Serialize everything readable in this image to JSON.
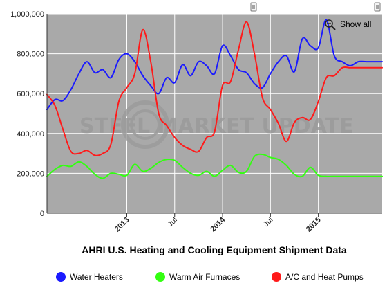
{
  "chart_data": {
    "type": "line",
    "title": "AHRI U.S. Heating and Cooling Equipment Shipment Data",
    "watermark": "STEEL MARKET UPDATE",
    "show_all_label": "Show all",
    "ylim": [
      0,
      1000000
    ],
    "y_ticks": [
      "0",
      "200,000",
      "400,000",
      "600,000",
      "800,000",
      "1,000,000"
    ],
    "x_range": [
      "2012-03",
      "2015-09"
    ],
    "x_ticks": [
      {
        "label": "2013",
        "date": "2013-01",
        "bold": true
      },
      {
        "label": "Jul",
        "date": "2013-07",
        "bold": false
      },
      {
        "label": "2014",
        "date": "2014-01",
        "bold": true
      },
      {
        "label": "Jul",
        "date": "2014-07",
        "bold": false
      },
      {
        "label": "2015",
        "date": "2015-01",
        "bold": true
      }
    ],
    "grid": true,
    "legend_position": "bottom",
    "colors": {
      "plot_bg": "#a9a9a9",
      "grid": "#ffffff",
      "axis": "#333333"
    },
    "series": [
      {
        "name": "Water Heaters",
        "color": "#1a1aff",
        "x": [
          "2012-03",
          "2012-04",
          "2012-05",
          "2012-06",
          "2012-07",
          "2012-08",
          "2012-09",
          "2012-10",
          "2012-11",
          "2012-12",
          "2013-01",
          "2013-02",
          "2013-03",
          "2013-04",
          "2013-05",
          "2013-06",
          "2013-07",
          "2013-08",
          "2013-09",
          "2013-10",
          "2013-11",
          "2013-12",
          "2014-01",
          "2014-02",
          "2014-03",
          "2014-04",
          "2014-05",
          "2014-06",
          "2014-07",
          "2014-08",
          "2014-09",
          "2014-10",
          "2014-11",
          "2014-12",
          "2015-01",
          "2015-02",
          "2015-03",
          "2015-04",
          "2015-05",
          "2015-06",
          "2015-07",
          "2015-08",
          "2015-09"
        ],
        "values": [
          520000,
          570000,
          565000,
          620000,
          700000,
          760000,
          705000,
          720000,
          680000,
          770000,
          800000,
          760000,
          690000,
          640000,
          600000,
          680000,
          655000,
          745000,
          690000,
          760000,
          740000,
          700000,
          840000,
          790000,
          720000,
          705000,
          650000,
          630000,
          700000,
          760000,
          790000,
          710000,
          875000,
          840000,
          830000,
          970000,
          790000,
          760000,
          740000,
          760000,
          760000,
          760000,
          760000
        ]
      },
      {
        "name": "Warm Air Furnaces",
        "color": "#33ff11",
        "x": [
          "2012-03",
          "2012-04",
          "2012-05",
          "2012-06",
          "2012-07",
          "2012-08",
          "2012-09",
          "2012-10",
          "2012-11",
          "2012-12",
          "2013-01",
          "2013-02",
          "2013-03",
          "2013-04",
          "2013-05",
          "2013-06",
          "2013-07",
          "2013-08",
          "2013-09",
          "2013-10",
          "2013-11",
          "2013-12",
          "2014-01",
          "2014-02",
          "2014-03",
          "2014-04",
          "2014-05",
          "2014-06",
          "2014-07",
          "2014-08",
          "2014-09",
          "2014-10",
          "2014-11",
          "2014-12",
          "2015-01",
          "2015-02",
          "2015-03",
          "2015-04",
          "2015-05",
          "2015-06",
          "2015-07",
          "2015-08",
          "2015-09"
        ],
        "values": [
          185000,
          220000,
          240000,
          235000,
          258000,
          235000,
          195000,
          175000,
          200000,
          195000,
          190000,
          245000,
          210000,
          225000,
          255000,
          270000,
          265000,
          230000,
          200000,
          190000,
          210000,
          185000,
          215000,
          240000,
          205000,
          210000,
          285000,
          295000,
          280000,
          270000,
          240000,
          195000,
          185000,
          230000,
          190000,
          185000,
          185000,
          185000,
          185000,
          185000,
          185000,
          185000,
          185000
        ]
      },
      {
        "name": "A/C and Heat Pumps",
        "color": "#ff1a1a",
        "x": [
          "2012-03",
          "2012-04",
          "2012-05",
          "2012-06",
          "2012-07",
          "2012-08",
          "2012-09",
          "2012-10",
          "2012-11",
          "2012-12",
          "2013-01",
          "2013-02",
          "2013-03",
          "2013-04",
          "2013-05",
          "2013-06",
          "2013-07",
          "2013-08",
          "2013-09",
          "2013-10",
          "2013-11",
          "2013-12",
          "2014-01",
          "2014-02",
          "2014-03",
          "2014-04",
          "2014-05",
          "2014-06",
          "2014-07",
          "2014-08",
          "2014-09",
          "2014-10",
          "2014-11",
          "2014-12",
          "2015-01",
          "2015-02",
          "2015-03",
          "2015-04",
          "2015-05",
          "2015-06",
          "2015-07",
          "2015-08",
          "2015-09"
        ],
        "values": [
          595000,
          540000,
          420000,
          310000,
          300000,
          315000,
          290000,
          300000,
          345000,
          560000,
          630000,
          700000,
          920000,
          760000,
          500000,
          440000,
          380000,
          340000,
          320000,
          310000,
          380000,
          410000,
          640000,
          660000,
          820000,
          960000,
          800000,
          580000,
          520000,
          450000,
          360000,
          455000,
          480000,
          470000,
          560000,
          680000,
          690000,
          730000,
          730000,
          730000,
          730000,
          730000,
          730000
        ]
      }
    ]
  }
}
